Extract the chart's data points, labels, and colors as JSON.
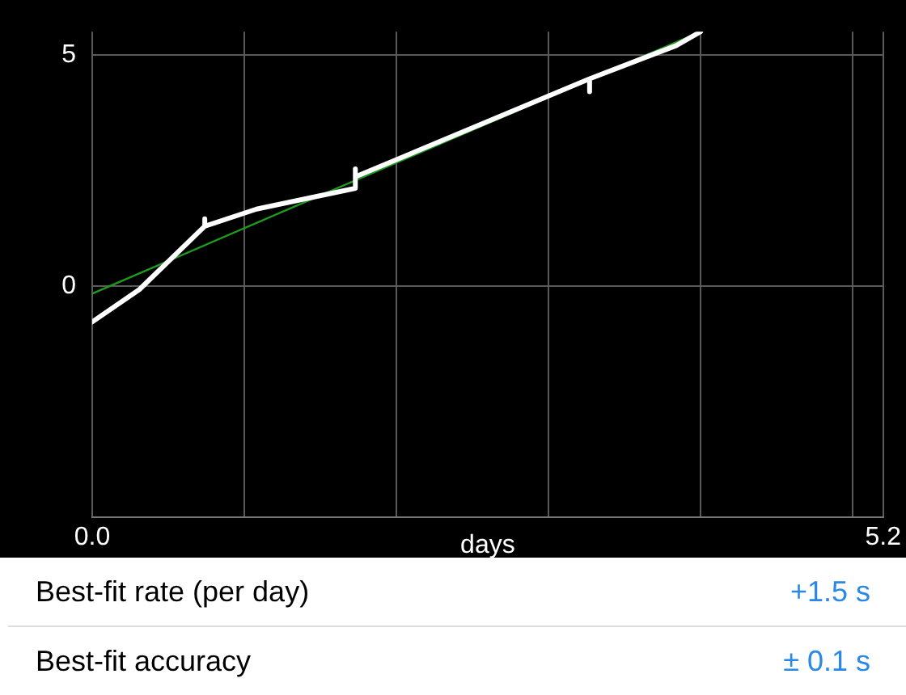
{
  "chart_data": {
    "type": "line",
    "xlabel": "days",
    "xlim": [
      0,
      5.2
    ],
    "ylim": [
      -5,
      5.5
    ],
    "xticks": [
      {
        "value": 0,
        "label": "0.0"
      },
      {
        "value": 1,
        "label": null
      },
      {
        "value": 2,
        "label": null
      },
      {
        "value": 3,
        "label": null
      },
      {
        "value": 4,
        "label": null
      },
      {
        "value": 5,
        "label": null
      },
      {
        "value": 5.2,
        "label": "5.2"
      }
    ],
    "yticks": [
      {
        "value": -5,
        "label": null
      },
      0,
      5
    ],
    "grid": true,
    "legend": false,
    "marker": "none",
    "line_style": "solid",
    "series": [
      {
        "color": "#ffffff",
        "x": [
          0,
          0.31,
          0.74,
          0.74,
          0.74,
          1.08,
          1.73,
          1.73,
          1.73,
          3.27,
          3.27,
          3.27,
          3.84,
          4.0
        ],
        "values": [
          -0.78,
          -0.08,
          1.29,
          1.45,
          1.29,
          1.66,
          2.11,
          2.53,
          2.36,
          4.48,
          4.2,
          4.48,
          5.2,
          5.5
        ]
      },
      {
        "color": "#1f9a1f",
        "x": [
          0,
          4.0
        ],
        "values": [
          -0.17,
          5.5
        ]
      }
    ],
    "annotations": [
      "Best-fit rate (per day)",
      "+1.5 s",
      "Best-fit accuracy",
      "± 0.1 s"
    ]
  }
}
